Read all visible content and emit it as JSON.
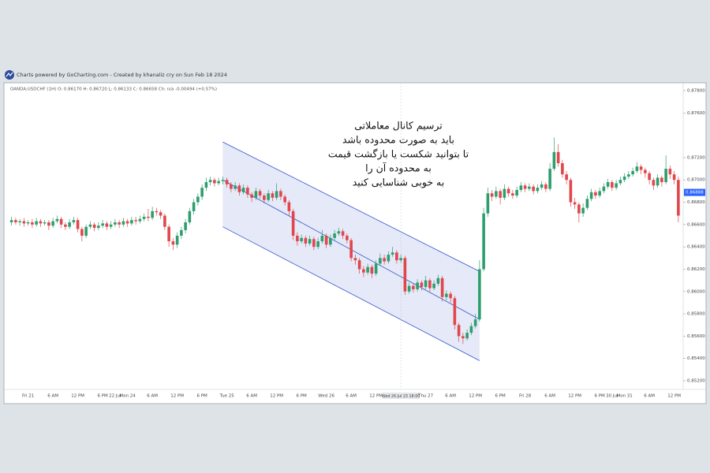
{
  "chart_data": {
    "type": "candlestick",
    "title": "Charts powered by GoCharting.com - Created by khanaliz cry on Sun Feb 18 2024",
    "symbol_info": "OANDA:USDCHF (1H)  O: 0.86170  H: 0.86720  L: 0.86133  C: 0.86658  Ch: n/a  -0.00494  (+0.57%)",
    "annotation": [
      "ترسیم کانال معاملاتی",
      "باید به صورت محدوده باشد",
      "تا بتوانید شکست یا بازگشت قیمت",
      "به محدوده آن را",
      "به خوبی شناسایی کنید"
    ],
    "up_color": "#2e9e6e",
    "down_color": "#e0474c",
    "ylim": [
      0.852,
      0.878
    ],
    "yticks": [
      {
        "value": 0.852,
        "label": "0.85200"
      },
      {
        "value": 0.854,
        "label": "0.85400"
      },
      {
        "value": 0.856,
        "label": "0.85600"
      },
      {
        "value": 0.858,
        "label": "0.85800"
      },
      {
        "value": 0.86,
        "label": "0.86000"
      },
      {
        "value": 0.862,
        "label": "0.86200"
      },
      {
        "value": 0.864,
        "label": "0.86400"
      },
      {
        "value": 0.866,
        "label": "0.86600"
      },
      {
        "value": 0.868,
        "label": "0.86800"
      },
      {
        "value": 0.87,
        "label": "0.87000"
      },
      {
        "value": 0.872,
        "label": "0.87200"
      },
      {
        "value": 0.876,
        "label": "0.87600"
      },
      {
        "value": 0.878,
        "label": "0.87800"
      }
    ],
    "last_price": {
      "value": 0.86888,
      "label": "0.86888"
    },
    "channel": {
      "x": [
        51,
        113
      ],
      "upper": [
        0.8734,
        0.8618
      ],
      "middle": [
        0.87,
        0.8575
      ],
      "lower": [
        0.8658,
        0.8538
      ],
      "color": "#3355cc"
    },
    "categories": [
      null,
      null,
      null,
      null,
      "Fri 21",
      null,
      null,
      null,
      null,
      null,
      "6 AM",
      null,
      null,
      null,
      null,
      null,
      "12 PM",
      null,
      null,
      null,
      null,
      null,
      "6 PM",
      null,
      null,
      "22 Jul",
      null,
      null,
      "Mon 24",
      null,
      null,
      null,
      null,
      null,
      "6 AM",
      null,
      null,
      null,
      null,
      null,
      "12 PM",
      null,
      null,
      null,
      null,
      null,
      "6 PM",
      null,
      null,
      null,
      null,
      null,
      "Tue 25",
      null,
      null,
      null,
      null,
      null,
      "6 AM",
      null,
      null,
      null,
      null,
      null,
      "12 PM",
      null,
      null,
      null,
      null,
      null,
      "6 PM",
      null,
      null,
      null,
      null,
      null,
      "Wed 26",
      null,
      null,
      null,
      null,
      null,
      "6 AM",
      null,
      null,
      null,
      null,
      null,
      "12 PM",
      null,
      null,
      null,
      null,
      null,
      "Wed 26 Jul 23 18:00",
      null,
      null,
      null,
      null,
      null,
      "Thu 27",
      null,
      null,
      null,
      null,
      null,
      "6 AM",
      null,
      null,
      null,
      null,
      null,
      "12 PM",
      null,
      null,
      null,
      null,
      null,
      "6 PM",
      null,
      null,
      null,
      null,
      null,
      "Fri 28",
      null,
      null,
      null,
      null,
      null,
      "6 AM",
      null,
      null,
      null,
      null,
      null,
      "12 PM",
      null,
      null,
      null,
      null,
      null,
      "6 PM",
      null,
      null,
      "30 Jul",
      null,
      null,
      "Mon 31",
      null,
      null,
      null,
      null,
      null,
      "6 AM",
      null,
      null,
      null,
      null,
      null,
      "12 PM",
      null
    ],
    "ohlc": [
      [
        0.8662,
        0.8667,
        0.8659,
        0.8664
      ],
      [
        0.8664,
        0.8666,
        0.866,
        0.8662
      ],
      [
        0.8662,
        0.8665,
        0.8659,
        0.8663
      ],
      [
        0.8663,
        0.8666,
        0.8658,
        0.8661
      ],
      [
        0.8661,
        0.8664,
        0.8659,
        0.8662
      ],
      [
        0.8662,
        0.8665,
        0.8657,
        0.866
      ],
      [
        0.866,
        0.8666,
        0.8658,
        0.8663
      ],
      [
        0.8663,
        0.8665,
        0.8658,
        0.8661
      ],
      [
        0.8661,
        0.8664,
        0.8659,
        0.8662
      ],
      [
        0.8662,
        0.8664,
        0.8655,
        0.8659
      ],
      [
        0.8659,
        0.8666,
        0.8657,
        0.8663
      ],
      [
        0.8663,
        0.8668,
        0.8661,
        0.8665
      ],
      [
        0.8665,
        0.8667,
        0.8657,
        0.866
      ],
      [
        0.866,
        0.8662,
        0.8655,
        0.8658
      ],
      [
        0.8658,
        0.8665,
        0.8656,
        0.8662
      ],
      [
        0.8662,
        0.8667,
        0.866,
        0.8664
      ],
      [
        0.8664,
        0.8666,
        0.8653,
        0.8656
      ],
      [
        0.8656,
        0.8658,
        0.8645,
        0.865
      ],
      [
        0.865,
        0.866,
        0.8648,
        0.8658
      ],
      [
        0.8658,
        0.8663,
        0.8656,
        0.866
      ],
      [
        0.866,
        0.8662,
        0.8654,
        0.8657
      ],
      [
        0.8657,
        0.8662,
        0.8655,
        0.8659
      ],
      [
        0.8659,
        0.8664,
        0.8657,
        0.8661
      ],
      [
        0.8661,
        0.8663,
        0.8655,
        0.8658
      ],
      [
        0.8658,
        0.8663,
        0.8656,
        0.866
      ],
      [
        0.866,
        0.8665,
        0.8658,
        0.8662
      ],
      [
        0.8662,
        0.8664,
        0.8657,
        0.866
      ],
      [
        0.866,
        0.8666,
        0.8658,
        0.8663
      ],
      [
        0.8663,
        0.8665,
        0.8658,
        0.8661
      ],
      [
        0.8661,
        0.8667,
        0.8659,
        0.8664
      ],
      [
        0.8664,
        0.8667,
        0.866,
        0.8663
      ],
      [
        0.8663,
        0.8668,
        0.8661,
        0.8665
      ],
      [
        0.8665,
        0.867,
        0.8663,
        0.8667
      ],
      [
        0.8667,
        0.8674,
        0.8663,
        0.8666
      ],
      [
        0.8666,
        0.8676,
        0.8664,
        0.8672
      ],
      [
        0.8672,
        0.8675,
        0.8668,
        0.8671
      ],
      [
        0.8671,
        0.8673,
        0.8665,
        0.8668
      ],
      [
        0.8668,
        0.867,
        0.8655,
        0.8658
      ],
      [
        0.8658,
        0.866,
        0.864,
        0.8645
      ],
      [
        0.8645,
        0.8648,
        0.8637,
        0.8642
      ],
      [
        0.8642,
        0.8653,
        0.8639,
        0.865
      ],
      [
        0.865,
        0.8658,
        0.8647,
        0.8655
      ],
      [
        0.8655,
        0.8665,
        0.8652,
        0.8662
      ],
      [
        0.8662,
        0.8675,
        0.866,
        0.8672
      ],
      [
        0.8672,
        0.8683,
        0.8669,
        0.868
      ],
      [
        0.868,
        0.8688,
        0.8677,
        0.8685
      ],
      [
        0.8685,
        0.8696,
        0.8682,
        0.8693
      ],
      [
        0.8693,
        0.8702,
        0.869,
        0.8698
      ],
      [
        0.8698,
        0.8703,
        0.8695,
        0.87
      ],
      [
        0.87,
        0.8702,
        0.8694,
        0.8697
      ],
      [
        0.8697,
        0.8702,
        0.8695,
        0.8699
      ],
      [
        0.8699,
        0.8703,
        0.8696,
        0.87
      ],
      [
        0.87,
        0.8702,
        0.8693,
        0.8696
      ],
      [
        0.8696,
        0.8698,
        0.8689,
        0.8692
      ],
      [
        0.8692,
        0.8698,
        0.869,
        0.8695
      ],
      [
        0.8695,
        0.8697,
        0.8686,
        0.8689
      ],
      [
        0.8689,
        0.8696,
        0.8687,
        0.8693
      ],
      [
        0.8693,
        0.8695,
        0.8684,
        0.8687
      ],
      [
        0.8687,
        0.8689,
        0.868,
        0.8684
      ],
      [
        0.8684,
        0.8693,
        0.8682,
        0.869
      ],
      [
        0.869,
        0.8692,
        0.8683,
        0.8686
      ],
      [
        0.8686,
        0.8688,
        0.8679,
        0.8682
      ],
      [
        0.8682,
        0.8691,
        0.868,
        0.8688
      ],
      [
        0.8688,
        0.869,
        0.8681,
        0.8684
      ],
      [
        0.8684,
        0.8697,
        0.8682,
        0.869
      ],
      [
        0.869,
        0.8692,
        0.8682,
        0.8685
      ],
      [
        0.8685,
        0.8687,
        0.8677,
        0.868
      ],
      [
        0.868,
        0.8682,
        0.8668,
        0.8672
      ],
      [
        0.8672,
        0.8674,
        0.8646,
        0.865
      ],
      [
        0.865,
        0.8653,
        0.8641,
        0.8645
      ],
      [
        0.8645,
        0.8651,
        0.8643,
        0.8648
      ],
      [
        0.8648,
        0.865,
        0.864,
        0.8643
      ],
      [
        0.8643,
        0.865,
        0.8641,
        0.8647
      ],
      [
        0.8647,
        0.8649,
        0.8637,
        0.864
      ],
      [
        0.864,
        0.8648,
        0.8638,
        0.8645
      ],
      [
        0.8645,
        0.8655,
        0.8643,
        0.865
      ],
      [
        0.865,
        0.8652,
        0.8639,
        0.8642
      ],
      [
        0.8642,
        0.8651,
        0.864,
        0.8648
      ],
      [
        0.8648,
        0.8655,
        0.8646,
        0.8652
      ],
      [
        0.8652,
        0.8657,
        0.865,
        0.8654
      ],
      [
        0.8654,
        0.8656,
        0.8647,
        0.865
      ],
      [
        0.865,
        0.8652,
        0.8643,
        0.8646
      ],
      [
        0.8646,
        0.8648,
        0.8627,
        0.863
      ],
      [
        0.863,
        0.8633,
        0.8624,
        0.8628
      ],
      [
        0.8628,
        0.863,
        0.8616,
        0.862
      ],
      [
        0.862,
        0.8623,
        0.8613,
        0.8617
      ],
      [
        0.8617,
        0.8625,
        0.8615,
        0.8622
      ],
      [
        0.8622,
        0.8624,
        0.8612,
        0.8616
      ],
      [
        0.8616,
        0.8628,
        0.8614,
        0.8625
      ],
      [
        0.8625,
        0.8634,
        0.8623,
        0.863
      ],
      [
        0.863,
        0.8633,
        0.8624,
        0.8627
      ],
      [
        0.8627,
        0.8636,
        0.8625,
        0.8633
      ],
      [
        0.8633,
        0.864,
        0.8631,
        0.8635
      ],
      [
        0.8635,
        0.8637,
        0.8625,
        0.8628
      ],
      [
        0.8628,
        0.8633,
        0.8626,
        0.863
      ],
      [
        0.863,
        0.8632,
        0.8597,
        0.86
      ],
      [
        0.86,
        0.8608,
        0.8598,
        0.8605
      ],
      [
        0.8605,
        0.8607,
        0.8599,
        0.8602
      ],
      [
        0.8602,
        0.8611,
        0.86,
        0.8608
      ],
      [
        0.8608,
        0.861,
        0.8601,
        0.8604
      ],
      [
        0.8604,
        0.8614,
        0.8602,
        0.861
      ],
      [
        0.861,
        0.8612,
        0.86,
        0.8603
      ],
      [
        0.8603,
        0.861,
        0.8601,
        0.8607
      ],
      [
        0.8607,
        0.8615,
        0.8605,
        0.8612
      ],
      [
        0.8612,
        0.8614,
        0.8591,
        0.8595
      ],
      [
        0.8595,
        0.8601,
        0.8592,
        0.8598
      ],
      [
        0.8598,
        0.86,
        0.859,
        0.8594
      ],
      [
        0.8594,
        0.8596,
        0.8566,
        0.857
      ],
      [
        0.857,
        0.8572,
        0.8555,
        0.856
      ],
      [
        0.856,
        0.8563,
        0.8553,
        0.8558
      ],
      [
        0.8558,
        0.8566,
        0.8556,
        0.8563
      ],
      [
        0.8563,
        0.8572,
        0.8561,
        0.8569
      ],
      [
        0.8569,
        0.858,
        0.8567,
        0.8575
      ],
      [
        0.8575,
        0.8628,
        0.8573,
        0.862
      ],
      [
        0.862,
        0.8675,
        0.8618,
        0.867
      ],
      [
        0.867,
        0.8693,
        0.8667,
        0.8688
      ],
      [
        0.8688,
        0.8691,
        0.8681,
        0.8685
      ],
      [
        0.8685,
        0.8694,
        0.8683,
        0.869
      ],
      [
        0.869,
        0.8692,
        0.8678,
        0.8684
      ],
      [
        0.8684,
        0.8696,
        0.8682,
        0.8692
      ],
      [
        0.8692,
        0.8694,
        0.8685,
        0.8688
      ],
      [
        0.8688,
        0.8691,
        0.8683,
        0.8686
      ],
      [
        0.8686,
        0.8694,
        0.8684,
        0.8691
      ],
      [
        0.8691,
        0.8698,
        0.8689,
        0.8695
      ],
      [
        0.8695,
        0.8697,
        0.8689,
        0.8692
      ],
      [
        0.8692,
        0.8697,
        0.869,
        0.8694
      ],
      [
        0.8694,
        0.8696,
        0.8687,
        0.869
      ],
      [
        0.869,
        0.8696,
        0.8688,
        0.8693
      ],
      [
        0.8693,
        0.8699,
        0.8691,
        0.8696
      ],
      [
        0.8696,
        0.8698,
        0.8689,
        0.8692
      ],
      [
        0.8692,
        0.8715,
        0.869,
        0.871
      ],
      [
        0.871,
        0.8738,
        0.8708,
        0.8725
      ],
      [
        0.8725,
        0.8732,
        0.8712,
        0.8715
      ],
      [
        0.8715,
        0.8718,
        0.8702,
        0.8705
      ],
      [
        0.8705,
        0.8708,
        0.8696,
        0.87
      ],
      [
        0.87,
        0.8702,
        0.8676,
        0.868
      ],
      [
        0.868,
        0.8684,
        0.8674,
        0.8678
      ],
      [
        0.8678,
        0.868,
        0.8662,
        0.867
      ],
      [
        0.867,
        0.8679,
        0.8667,
        0.8675
      ],
      [
        0.8675,
        0.8686,
        0.8673,
        0.8683
      ],
      [
        0.8683,
        0.8692,
        0.8681,
        0.8689
      ],
      [
        0.8689,
        0.8691,
        0.8683,
        0.8686
      ],
      [
        0.8686,
        0.8693,
        0.8684,
        0.869
      ],
      [
        0.869,
        0.8697,
        0.8688,
        0.8694
      ],
      [
        0.8694,
        0.8701,
        0.8692,
        0.8698
      ],
      [
        0.8698,
        0.87,
        0.869,
        0.8693
      ],
      [
        0.8693,
        0.87,
        0.8691,
        0.8697
      ],
      [
        0.8697,
        0.8703,
        0.8695,
        0.87
      ],
      [
        0.87,
        0.8706,
        0.8698,
        0.8703
      ],
      [
        0.8703,
        0.8708,
        0.8701,
        0.8705
      ],
      [
        0.8705,
        0.8711,
        0.8703,
        0.8708
      ],
      [
        0.8708,
        0.8716,
        0.8706,
        0.8712
      ],
      [
        0.8712,
        0.8714,
        0.8705,
        0.8709
      ],
      [
        0.8709,
        0.8711,
        0.8702,
        0.8706
      ],
      [
        0.8706,
        0.8708,
        0.8696,
        0.87
      ],
      [
        0.87,
        0.8702,
        0.8691,
        0.8695
      ],
      [
        0.8695,
        0.8705,
        0.8693,
        0.8702
      ],
      [
        0.8702,
        0.8704,
        0.8694,
        0.8698
      ],
      [
        0.8698,
        0.8722,
        0.8696,
        0.871
      ],
      [
        0.871,
        0.8713,
        0.8701,
        0.8705
      ],
      [
        0.8705,
        0.8708,
        0.8696,
        0.87
      ],
      [
        0.87,
        0.8703,
        0.8662,
        0.8668
      ]
    ]
  }
}
